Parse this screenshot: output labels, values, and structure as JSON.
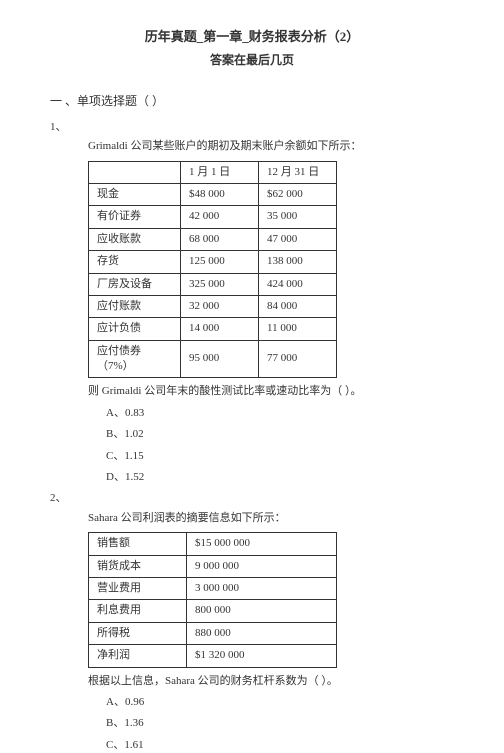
{
  "header": {
    "title_main": "历年真题_第一章_财务报表分析（2）",
    "title_sub": "答案在最后几页"
  },
  "section": {
    "heading": "一 、单项选择题（  ）"
  },
  "q1": {
    "num": "1、",
    "intro": "Grimaldi 公司某些账户的期初及期末账户余额如下所示：",
    "table": {
      "headers": [
        "",
        "1 月 1 日",
        "12 月 31 日"
      ],
      "rows": [
        [
          "现金",
          "$48 000",
          "$62 000"
        ],
        [
          "有价证券",
          "42 000",
          "35 000"
        ],
        [
          "应收账款",
          "68 000",
          "47 000"
        ],
        [
          "存货",
          "125 000",
          "138 000"
        ],
        [
          "厂房及设备",
          "325 000",
          "424 000"
        ],
        [
          "应付账款",
          "32 000",
          "84 000"
        ],
        [
          "应计负债",
          "14 000",
          "11 000"
        ],
        [
          "应付债券（7%）",
          "95 000",
          "77 000"
        ]
      ]
    },
    "after": "则 Grimaldi 公司年末的酸性测试比率或速动比率为（    ）。",
    "options": [
      "A、0.83",
      "B、1.02",
      "C、1.15",
      "D、1.52"
    ]
  },
  "q2": {
    "num": "2、",
    "intro": "Sahara 公司利润表的摘要信息如下所示：",
    "table": {
      "rows": [
        [
          "销售额",
          "$15 000 000"
        ],
        [
          "销货成本",
          "9 000 000"
        ],
        [
          "营业费用",
          "3 000 000"
        ],
        [
          "利息费用",
          "800 000"
        ],
        [
          "所得税",
          "880 000"
        ],
        [
          "净利润",
          "$1 320 000"
        ]
      ]
    },
    "after": "根据以上信息，Sahara 公司的财务杠杆系数为（    ）。",
    "options": [
      "A、0.96",
      "B、1.36",
      "C、1.61"
    ]
  }
}
